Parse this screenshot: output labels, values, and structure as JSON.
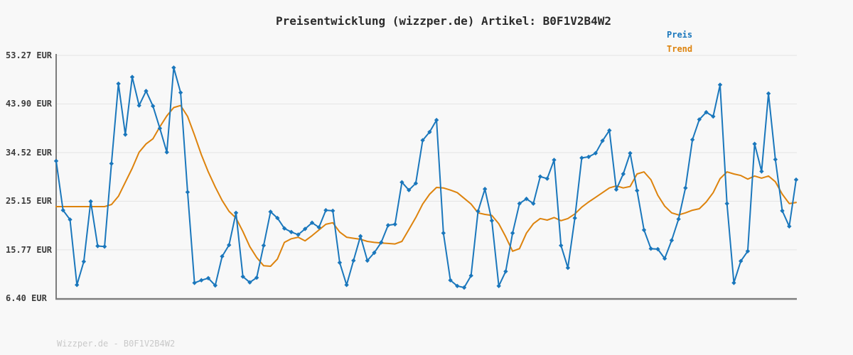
{
  "title": "Preisentwicklung (wizzper.de) Artikel: B0F1V2B4W2",
  "watermark": "Wizzper.de - B0F1V2B4W2",
  "legend": {
    "preis_label": "Preis",
    "trend_label": "Trend"
  },
  "colors": {
    "preis": "#1a77bc",
    "trend": "#dd830d",
    "grid": "#e4e4e4",
    "axis": "#7d7d7d",
    "background": "#f8f8f8",
    "title_text": "#2b2b2b",
    "tick_text": "#3c3c3c",
    "watermark_text": "#c9c9c9"
  },
  "chart_data": {
    "type": "line",
    "title": "Preisentwicklung (wizzper.de) Artikel: B0F1V2B4W2",
    "currency": "EUR",
    "ylim": [
      6.4,
      53.27
    ],
    "y_tick_values": [
      53.27,
      43.9,
      34.52,
      25.15,
      15.77,
      6.4
    ],
    "y_tick_labels": [
      "53.27 EUR",
      "43.90 EUR",
      "34.52 EUR",
      "25.15 EUR",
      "15.77 EUR",
      "6.40 EUR"
    ],
    "x_tick_labels": [],
    "grid": "horizontal",
    "legend_position": "top-right",
    "series": [
      {
        "name": "Preis",
        "color": "#1a77bc",
        "marker": "diamond",
        "values": [
          32.9,
          23.4,
          21.6,
          9.0,
          13.5,
          25.1,
          16.5,
          16.4,
          32.4,
          47.8,
          38.0,
          49.1,
          43.6,
          46.4,
          43.5,
          39.2,
          34.6,
          50.9,
          46.1,
          26.9,
          9.4,
          9.9,
          10.3,
          8.9,
          14.5,
          16.7,
          22.9,
          10.6,
          9.5,
          10.4,
          16.6,
          23.1,
          21.9,
          19.9,
          19.2,
          18.7,
          19.8,
          21.0,
          20.1,
          23.4,
          23.3,
          13.3,
          9.0,
          13.7,
          18.4,
          13.7,
          15.2,
          17.2,
          20.5,
          20.7,
          28.8,
          27.3,
          28.6,
          36.9,
          38.5,
          40.8,
          19.0,
          9.9,
          8.8,
          8.5,
          10.8,
          23.2,
          27.5,
          21.4,
          8.8,
          11.6,
          19.0,
          24.7,
          25.6,
          24.7,
          29.9,
          29.5,
          33.1,
          16.6,
          12.3,
          21.9,
          33.5,
          33.7,
          34.4,
          36.8,
          38.8,
          27.4,
          30.4,
          34.4,
          27.2,
          19.6,
          16.0,
          15.9,
          14.1,
          17.6,
          21.7,
          27.7,
          37.0,
          40.9,
          42.3,
          41.5,
          47.6,
          24.7,
          9.4,
          13.6,
          15.5,
          36.2,
          30.9,
          45.9,
          33.2,
          23.3,
          20.3,
          29.3
        ]
      },
      {
        "name": "Trend",
        "color": "#dd830d",
        "marker": "none",
        "values": [
          24.1,
          24.1,
          24.1,
          24.1,
          24.1,
          24.1,
          24.1,
          24.1,
          24.5,
          26.1,
          28.8,
          31.5,
          34.6,
          36.2,
          37.2,
          39.5,
          41.6,
          43.2,
          43.6,
          41.5,
          37.9,
          34.1,
          30.8,
          27.9,
          25.3,
          23.2,
          21.9,
          19.3,
          16.4,
          14.3,
          12.7,
          12.6,
          14.0,
          17.2,
          17.9,
          18.2,
          17.5,
          18.5,
          19.6,
          20.7,
          21.0,
          19.2,
          18.2,
          18.0,
          17.8,
          17.4,
          17.2,
          17.1,
          17.0,
          16.9,
          17.4,
          19.7,
          22.0,
          24.6,
          26.5,
          27.8,
          27.7,
          27.3,
          26.8,
          25.7,
          24.6,
          22.9,
          22.6,
          22.4,
          20.8,
          18.3,
          15.5,
          16.0,
          19.0,
          20.8,
          21.8,
          21.5,
          22.0,
          21.4,
          21.8,
          22.7,
          24.0,
          25.0,
          25.9,
          26.8,
          27.7,
          28.1,
          27.7,
          28.0,
          30.4,
          30.8,
          29.3,
          26.3,
          24.2,
          22.9,
          22.5,
          22.9,
          23.4,
          23.7,
          25.0,
          26.8,
          29.5,
          30.8,
          30.4,
          30.1,
          29.4,
          30.0,
          29.6,
          30.0,
          28.9,
          26.5,
          24.7,
          24.9
        ]
      }
    ]
  }
}
